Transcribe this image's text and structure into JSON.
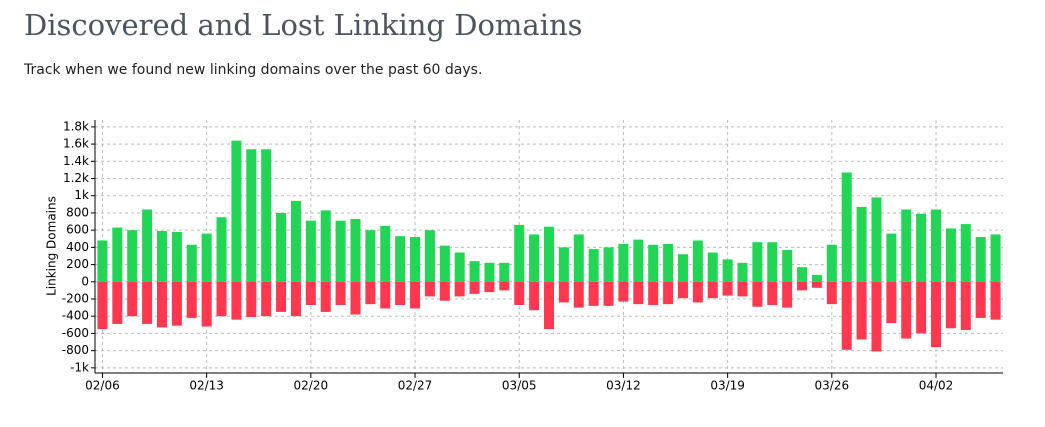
{
  "chart_data": {
    "type": "bar",
    "title": "Discovered and Lost Linking Domains",
    "subtitle": "Track when we found new linking domains over the past 60 days.",
    "y_label": "Linking Domains",
    "categories": [
      "02/06",
      null,
      null,
      null,
      null,
      null,
      null,
      "02/13",
      null,
      null,
      null,
      null,
      null,
      null,
      "02/20",
      null,
      null,
      null,
      null,
      null,
      null,
      "02/27",
      null,
      null,
      null,
      null,
      null,
      null,
      "03/05",
      null,
      null,
      null,
      null,
      null,
      null,
      "03/12",
      null,
      null,
      null,
      null,
      null,
      null,
      "03/19",
      null,
      null,
      null,
      null,
      null,
      null,
      "03/26",
      null,
      null,
      null,
      null,
      null,
      null,
      "04/02",
      null,
      null,
      null,
      null
    ],
    "series": [
      {
        "color": "#21d655",
        "values": [
          480,
          630,
          600,
          840,
          590,
          580,
          430,
          560,
          750,
          1640,
          1540,
          1540,
          800,
          940,
          710,
          830,
          710,
          730,
          600,
          650,
          530,
          520,
          600,
          420,
          340,
          240,
          220,
          220,
          660,
          550,
          640,
          400,
          550,
          380,
          400,
          440,
          490,
          430,
          440,
          320,
          480,
          340,
          260,
          220,
          460,
          460,
          370,
          170,
          80,
          430,
          1270,
          870,
          980,
          560,
          840,
          790,
          840,
          620,
          670,
          520,
          550
        ]
      },
      {
        "color": "#ff3850",
        "values": [
          -550,
          -490,
          -400,
          -490,
          -530,
          -510,
          -420,
          -520,
          -400,
          -440,
          -410,
          -400,
          -350,
          -400,
          -270,
          -350,
          -270,
          -380,
          -260,
          -310,
          -270,
          -310,
          -170,
          -220,
          -170,
          -140,
          -120,
          -100,
          -270,
          -330,
          -550,
          -240,
          -300,
          -280,
          -280,
          -230,
          -260,
          -270,
          -260,
          -190,
          -240,
          -190,
          -160,
          -170,
          -290,
          -270,
          -300,
          -100,
          -70,
          -260,
          -790,
          -670,
          -810,
          -480,
          -660,
          -600,
          -760,
          -540,
          -560,
          -420,
          -440
        ]
      }
    ],
    "ylim": [
      -1060,
      1880
    ],
    "yticks": [
      {
        "value": -1000,
        "label": "-1k"
      },
      -800,
      -600,
      -400,
      -200,
      0,
      200,
      400,
      600,
      800,
      {
        "value": 1000,
        "label": "1k"
      },
      {
        "value": 1200,
        "label": "1.2k"
      },
      {
        "value": 1400,
        "label": "1.4k"
      },
      {
        "value": 1600,
        "label": "1.6k"
      },
      {
        "value": 1800,
        "label": "1.8k"
      }
    ],
    "grid": true
  }
}
